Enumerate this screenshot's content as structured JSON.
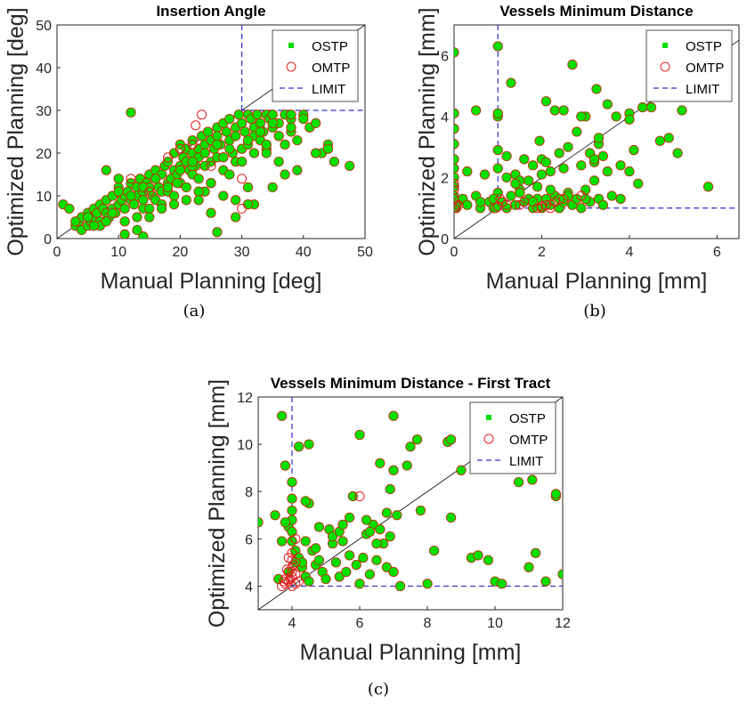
{
  "chart_data": [
    {
      "id": "a",
      "type": "scatter",
      "caption": "(a)",
      "title": "Insertion Angle",
      "xlabel": "Manual Planning [deg]",
      "ylabel": "Optimized Planning [deg]",
      "xlim": [
        0,
        50
      ],
      "ylim": [
        0,
        50
      ],
      "xticks": [
        0,
        10,
        20,
        30,
        40,
        50
      ],
      "yticks": [
        0,
        10,
        20,
        30,
        40,
        50
      ],
      "limit": {
        "x": 30,
        "y": 30
      },
      "legend": {
        "position": "top-right",
        "entries": [
          "OSTP",
          "OMTP",
          "LIMIT"
        ]
      },
      "colors": {
        "ostp": "#00e000",
        "omtp": "#e02020",
        "limit": "#3030d0",
        "identity": "#000000"
      },
      "series": [
        {
          "name": "OSTP",
          "marker": "filled-circle",
          "x": [
            1,
            2,
            3,
            3.5,
            4,
            4,
            5,
            5,
            5.5,
            6,
            6,
            6.5,
            7,
            7,
            7.5,
            8,
            8,
            8.5,
            9,
            9,
            9.5,
            10,
            10,
            10.5,
            11,
            11,
            11.5,
            12,
            12,
            12.5,
            13,
            13,
            13.5,
            14,
            14,
            14.5,
            15,
            15,
            15.5,
            16,
            16,
            16.5,
            17,
            17,
            17.5,
            18,
            18,
            18.5,
            19,
            19,
            19.5,
            20,
            20,
            20.5,
            21,
            21,
            21.5,
            22,
            22,
            22.5,
            23,
            23,
            23.5,
            24,
            24,
            24.5,
            25,
            25,
            25.5,
            26,
            26,
            26.5,
            27,
            27,
            27.5,
            28,
            28,
            28.5,
            29,
            29,
            29.5,
            30,
            30,
            30.5,
            31,
            31,
            31.5,
            32,
            32,
            32.5,
            33,
            33,
            33.5,
            34,
            34,
            34.5,
            35,
            35,
            36,
            36,
            37,
            37,
            38,
            38,
            39,
            40,
            41,
            42,
            43,
            44,
            45,
            47.5,
            8,
            10,
            12,
            14,
            16,
            18,
            20,
            22,
            24,
            26,
            28,
            31,
            33,
            35,
            37,
            19.5,
            22,
            24,
            27,
            29,
            32,
            34,
            36,
            38,
            3,
            5,
            7,
            9,
            11,
            13,
            15,
            17,
            19,
            21,
            23,
            25,
            27,
            29,
            10,
            12,
            14,
            16,
            18,
            20,
            22,
            24,
            26,
            6,
            8,
            13,
            15,
            17,
            21,
            23,
            25,
            28,
            30,
            32,
            34,
            36,
            38,
            40,
            11,
            14,
            19,
            26,
            31,
            35,
            39,
            42,
            44,
            23,
            25,
            27,
            29,
            31
          ],
          "y": [
            8,
            7,
            3,
            4,
            2,
            5,
            6,
            3,
            4,
            7,
            5,
            6,
            8,
            4,
            7,
            6,
            9,
            5,
            7,
            10,
            6,
            8,
            12,
            9,
            10,
            7,
            11,
            9,
            13,
            8,
            12,
            10,
            14,
            11,
            9,
            13,
            12,
            15,
            10,
            14,
            16,
            12,
            15,
            11,
            17,
            13,
            18,
            14,
            16,
            20,
            15,
            17,
            22,
            19,
            18,
            21,
            16,
            20,
            23,
            17,
            21,
            19,
            24,
            22,
            20,
            25,
            18,
            23,
            21,
            26,
            24,
            22,
            27,
            19,
            25,
            23,
            28,
            20,
            26,
            24,
            29,
            21,
            27,
            25,
            29,
            22,
            28,
            26,
            24,
            29,
            23,
            27,
            25,
            29,
            21,
            28,
            26,
            29,
            24,
            27,
            22,
            29,
            25,
            28,
            23,
            29,
            26,
            27,
            20,
            22,
            18,
            17,
            16,
            14,
            29.5,
            7,
            9,
            11,
            13,
            15,
            17,
            19,
            21,
            23,
            25,
            27,
            15,
            13,
            17,
            11,
            19,
            9,
            8,
            20,
            18,
            29,
            4,
            5,
            3,
            6,
            4,
            5,
            7,
            8,
            10,
            12,
            14,
            13,
            16,
            18,
            11,
            10,
            12,
            14,
            12,
            16,
            18,
            20,
            22,
            3,
            4,
            2,
            5,
            7,
            9,
            11,
            13,
            15,
            18,
            20,
            22,
            24,
            26,
            28,
            1,
            0.5,
            8,
            1.5,
            8,
            12,
            16,
            20,
            21,
            9,
            6,
            10,
            5,
            12
          ]
        },
        {
          "name": "OMTP",
          "marker": "open-circle",
          "x": [
            22.5,
            23.5,
            30,
            30,
            22,
            20,
            18,
            25,
            12,
            15
          ],
          "y": [
            26.5,
            29,
            7,
            14,
            22,
            21,
            19,
            17,
            14,
            11
          ]
        }
      ]
    },
    {
      "id": "b",
      "type": "scatter",
      "caption": "(b)",
      "title": "Vessels Minimum Distance",
      "xlabel": "Manual Planning [mm]",
      "ylabel": "Optimized Planning [mm]",
      "xlim": [
        0,
        6.5
      ],
      "ylim": [
        0,
        7
      ],
      "xticks": [
        0,
        2,
        4,
        6
      ],
      "yticks": [
        0,
        2,
        4,
        6
      ],
      "limit": {
        "x": 1,
        "y": 1
      },
      "legend": {
        "position": "top-right",
        "entries": [
          "OSTP",
          "OMTP",
          "LIMIT"
        ]
      },
      "colors": {
        "ostp": "#00e000",
        "omtp": "#e02020",
        "limit": "#3030d0",
        "identity": "#000000"
      },
      "series": [
        {
          "name": "OSTP",
          "marker": "filled-circle",
          "x": [
            0,
            0,
            0,
            0,
            0,
            0,
            0,
            0,
            0,
            0,
            0.05,
            0.1,
            0.2,
            0.3,
            0.5,
            0.6,
            0.8,
            0.9,
            1,
            1,
            1,
            1,
            1,
            1.1,
            1.2,
            1.3,
            1.4,
            1.5,
            1.6,
            1.7,
            1.8,
            1.9,
            2,
            2,
            2.1,
            2.2,
            2.3,
            2.4,
            2.5,
            2.6,
            2.7,
            2.8,
            2.9,
            3,
            3.1,
            3.2,
            3.3,
            3.4,
            3.5,
            3.6,
            3.8,
            4,
            4.2,
            4.5,
            4.7,
            5,
            5.2,
            5.8,
            0.5,
            0.9,
            1.2,
            1.4,
            1.5,
            1.8,
            2,
            2.2,
            2.4,
            2.6,
            2.8,
            3,
            3.2,
            3.4,
            1,
            1.3,
            1.7,
            2.1,
            2.5,
            2.9,
            3.3,
            3.7,
            4.1,
            1.1,
            1.6,
            2.3,
            2.7,
            3.1,
            3.5,
            0.7,
            1.9,
            2.5,
            2.9,
            3.3,
            4.3,
            5.1,
            4.7,
            4.9,
            4,
            3.8,
            1.2,
            2.1,
            3.2,
            0.3,
            0.6,
            1.5,
            2.2,
            3,
            1.8,
            2.6,
            2.4,
            0.95,
            1.4,
            1.95,
            3.25,
            4
          ],
          "y": [
            6.1,
            4.1,
            3.6,
            3.1,
            2.6,
            2.3,
            2,
            1.7,
            1.4,
            1.1,
            1,
            1.2,
            1.3,
            1.1,
            1.4,
            1,
            1.2,
            1,
            6.3,
            4,
            2.9,
            2.3,
            1.5,
            1.2,
            1,
            1.4,
            1.1,
            1.6,
            1.2,
            1.3,
            1,
            1.7,
            1,
            2.1,
            1.3,
            1.1,
            1.4,
            1,
            1.2,
            1.5,
            1.1,
            1.3,
            1,
            1.6,
            1.2,
            1.9,
            1.3,
            1.1,
            2.2,
            1.4,
            1.3,
            2.2,
            1.8,
            4.3,
            3.2,
            5.2,
            4.2,
            1.7,
            4.2,
            1.3,
            2.7,
            2.1,
            1.9,
            2.4,
            2.6,
            2.2,
            2.8,
            3,
            3.5,
            4,
            2.5,
            2.7,
            4.1,
            5.1,
            1.9,
            4.5,
            2.3,
            2.4,
            3.1,
            4,
            2.9,
            1.2,
            2.6,
            4.2,
            5.7,
            2.8,
            4.4,
            2.1,
            1.3,
            4.2,
            4,
            3.3,
            4.3,
            2.8,
            5.2,
            3.3,
            4.1,
            2.4,
            2,
            2.5,
            2.6,
            2.2,
            1.2,
            1.5,
            1.6,
            1.3,
            1.2,
            1.4,
            1.3,
            1,
            1.8,
            3.2,
            4.9,
            3.9
          ]
        },
        {
          "name": "OMTP",
          "marker": "open-circle",
          "x": [
            0,
            0,
            0,
            0,
            0.05,
            0.1,
            1,
            1.05,
            1.1,
            1.5,
            1.9,
            2,
            2.1,
            2.2,
            2.3,
            2.5,
            1.6,
            1.2,
            2.9
          ],
          "y": [
            1.8,
            1.6,
            1.3,
            1,
            1.05,
            1.1,
            1.05,
            1.3,
            1.2,
            1.1,
            1,
            1.05,
            1.1,
            1,
            1.2,
            1.3,
            1.2,
            1.1,
            1.4
          ]
        }
      ]
    },
    {
      "id": "c",
      "type": "scatter",
      "caption": "(c)",
      "title": "Vessels Minimum Distance - First Tract",
      "xlabel": "Manual Planning [mm]",
      "ylabel": "Optimized Planning [mm]",
      "xlim": [
        3,
        12
      ],
      "ylim": [
        3,
        12
      ],
      "xticks": [
        4,
        6,
        8,
        10,
        12
      ],
      "yticks": [
        4,
        6,
        8,
        10,
        12
      ],
      "limit": {
        "x": 4,
        "y": 4
      },
      "legend": {
        "position": "top-right",
        "entries": [
          "OSTP",
          "OMTP",
          "LIMIT"
        ]
      },
      "colors": {
        "ostp": "#00e000",
        "omtp": "#e02020",
        "limit": "#3030d0",
        "identity": "#000000"
      },
      "series": [
        {
          "name": "OSTP",
          "marker": "filled-circle",
          "x": [
            3,
            3.5,
            3.7,
            3.8,
            3.9,
            4,
            4,
            4,
            4,
            4,
            4,
            4.1,
            4.2,
            4.3,
            4.4,
            4.5,
            4.5,
            4.6,
            4.7,
            4.8,
            4.9,
            5,
            5.1,
            5.2,
            5.3,
            5.4,
            5.5,
            5.6,
            5.7,
            5.8,
            5.9,
            6,
            6.1,
            6.2,
            6.3,
            6.4,
            6.5,
            6.6,
            6.7,
            6.8,
            6.9,
            7,
            7.1,
            7.2,
            7.5,
            7.8,
            8,
            8.2,
            8.6,
            9,
            9.3,
            9.8,
            10,
            10.2,
            10.7,
            11,
            11.2,
            11.5,
            11.8,
            12,
            3.7,
            3.8,
            4,
            4.3,
            4.7,
            5.2,
            5.7,
            6.3,
            6.8,
            7.4,
            8.7,
            9.5,
            3.6,
            3.9,
            4.1,
            4.4,
            4.8,
            5.4,
            6,
            6.6,
            6.9,
            7,
            4.5,
            4.4,
            5.5,
            6.2,
            6.5,
            4.2,
            7.7,
            8.7,
            7,
            11.1,
            11.8
          ],
          "y": [
            6.7,
            7,
            11.2,
            9.1,
            6.5,
            8.4,
            7.7,
            7.2,
            6.8,
            6.3,
            5.9,
            5.5,
            5.2,
            4.8,
            4.4,
            4.2,
            10,
            5.5,
            4.9,
            5.1,
            4.6,
            4.3,
            6.4,
            5.8,
            5,
            4.4,
            5.9,
            4.6,
            5.3,
            7.8,
            4.9,
            4.1,
            5.2,
            6.2,
            4.5,
            6.6,
            5.1,
            6.4,
            5.8,
            4.8,
            6.1,
            4.6,
            7,
            4,
            9.9,
            7.2,
            4.1,
            5.5,
            10.1,
            8.9,
            5.2,
            5.1,
            4.2,
            4.1,
            8.4,
            4.8,
            5.4,
            4.2,
            7.8,
            4.5,
            5.9,
            6.7,
            5.9,
            5,
            5.6,
            6.1,
            6.9,
            6.3,
            7.1,
            9.1,
            10.2,
            5.3,
            4.3,
            4.6,
            5,
            5.9,
            6.5,
            6.3,
            10.4,
            9.2,
            8.1,
            11.2,
            7.5,
            7.6,
            6.6,
            6.8,
            5.8,
            9.9,
            10.2,
            6.9,
            8.9,
            8.5,
            7.9
          ]
        },
        {
          "name": "OMTP",
          "marker": "open-circle",
          "x": [
            3.7,
            3.8,
            3.8,
            3.9,
            3.9,
            4,
            4,
            4,
            4,
            4,
            4.1,
            4.1,
            4.05,
            3.95,
            3.85,
            3.75,
            4,
            6,
            4.2,
            3.9,
            4.1
          ],
          "y": [
            4,
            4.1,
            4.3,
            4.2,
            4.6,
            4,
            4.4,
            4.8,
            5.1,
            5.4,
            4.1,
            4.5,
            4.9,
            4.3,
            4.7,
            4.2,
            4.6,
            7.8,
            4.2,
            5.2,
            6
          ]
        }
      ]
    }
  ]
}
